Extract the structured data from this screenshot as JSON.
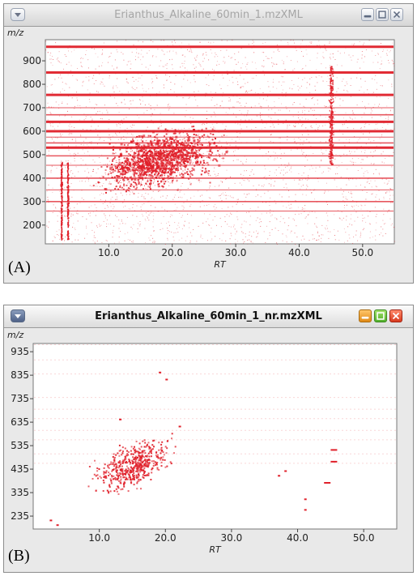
{
  "panel_a": {
    "title": "Erianthus_Alkaline_60min_1.mzXML",
    "panel_label": "(A)",
    "y_title": "m/z",
    "x_title": "RT",
    "y_ticks": [
      "900",
      "800",
      "700",
      "600",
      "500",
      "400",
      "300",
      "200"
    ],
    "x_ticks": [
      "10.0",
      "20.0",
      "30.0",
      "40.0",
      "50.0"
    ],
    "point_color": "#e0202a"
  },
  "panel_b": {
    "title": "Erianthus_Alkaline_60min_1_nr.mzXML",
    "panel_label": "(B)",
    "y_title": "m/z",
    "x_title": "RT",
    "y_ticks": [
      "935",
      "835",
      "735",
      "635",
      "535",
      "435",
      "335",
      "235"
    ],
    "x_ticks": [
      "10.0",
      "20.0",
      "30.0",
      "40.0",
      "50.0"
    ],
    "point_color": "#e0202a"
  },
  "chart_data": [
    {
      "type": "scatter",
      "title": "Erianthus_Alkaline_60min_1.mzXML",
      "xlabel": "RT",
      "ylabel": "m/z",
      "xlim": [
        0,
        55
      ],
      "ylim": [
        120,
        990
      ],
      "grid": false,
      "features": {
        "constant_mz_lines": [
          960,
          850,
          755,
          700,
          670,
          640,
          600,
          575,
          550,
          530,
          495,
          455,
          400,
          350,
          300,
          260
        ],
        "dense_cloud": {
          "rt_center": 18,
          "mz_center": 480,
          "rt_spread": 9,
          "mz_spread": 130
        },
        "vertical_band_rt": 45,
        "vertical_band_mz": [
          460,
          880
        ],
        "early_streaks_rt": [
          2.5,
          3.5
        ]
      }
    },
    {
      "type": "scatter",
      "title": "Erianthus_Alkaline_60min_1_nr.mzXML",
      "xlabel": "RT",
      "ylabel": "m/z",
      "xlim": [
        0,
        55
      ],
      "ylim": [
        180,
        970
      ],
      "grid": false,
      "features": {
        "faint_mz_lines": [
          965,
          900,
          840,
          740,
          690,
          650,
          600,
          560,
          500,
          460
        ],
        "cloud": {
          "rt_center": 15,
          "mz_center": 450,
          "rt_spread": 6,
          "mz_spread": 95
        },
        "points_rt_mz": [
          [
            41,
            310
          ],
          [
            41,
            265
          ],
          [
            37,
            410
          ],
          [
            38,
            430
          ],
          [
            45,
            470
          ],
          [
            45,
            520
          ],
          [
            44,
            380
          ],
          [
            20,
            820
          ],
          [
            19,
            850
          ],
          [
            2.5,
            220
          ],
          [
            3.5,
            200
          ],
          [
            13,
            650
          ],
          [
            22,
            620
          ]
        ]
      }
    }
  ]
}
